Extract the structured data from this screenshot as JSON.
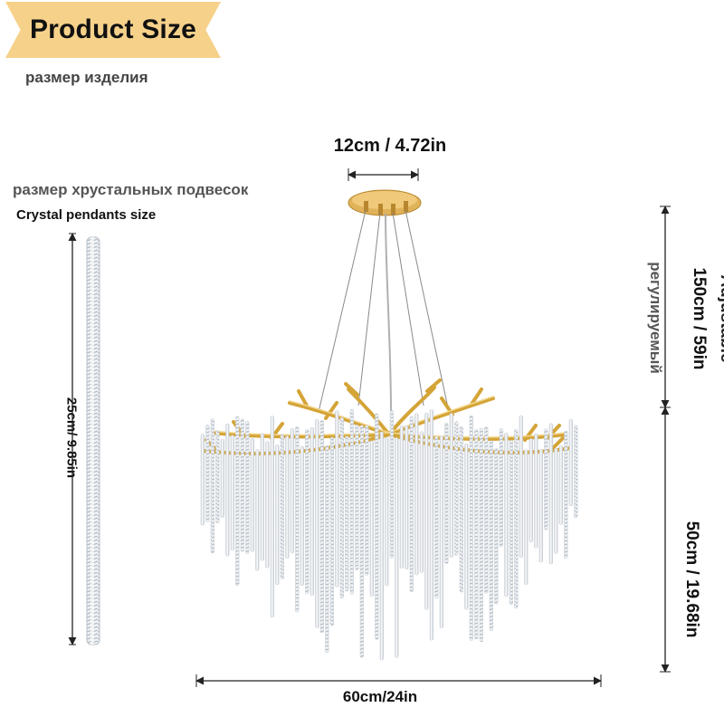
{
  "header": {
    "title": "Product Size",
    "subtitle_ru": "размер изделия"
  },
  "pendant": {
    "label_ru": "размер хрустальных подвесок",
    "label_en": "Crystal pendants size",
    "length": "25cm/  9.85in"
  },
  "dimensions": {
    "canopy": "12cm / 4.72in",
    "cable_adjustable": "Adjustable",
    "cable_length": "150cm / 59in",
    "cable_adjustable_ru": "регулируемый",
    "body_height": "50cm / 19.68in",
    "diameter": "60cm/24in"
  },
  "colors": {
    "banner": "#f6d18a",
    "gold": "#d4a437",
    "crystal": "#e9edf1"
  }
}
